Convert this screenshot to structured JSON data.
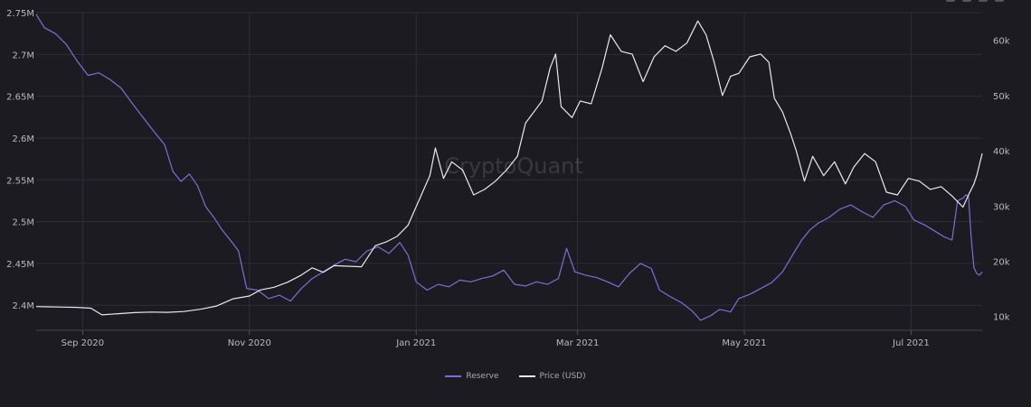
{
  "watermark": "CryptoQuant",
  "legend": [
    {
      "label": "Reserve",
      "color": "#7c6fd4"
    },
    {
      "label": "Price (USD)",
      "color": "#e8e8ee"
    }
  ],
  "colors": {
    "background": "#1c1b22",
    "grid": "#2e2d37",
    "reserve": "#7c6fd4",
    "price": "#e8e8ee"
  },
  "chart_data": {
    "type": "line",
    "title": "",
    "grid": true,
    "legend_position": "bottom-center",
    "x_range": [
      "2020-08-15",
      "2021-07-27"
    ],
    "x_ticks": [
      {
        "label": "Sep 2020",
        "date": "2020-09-01"
      },
      {
        "label": "Nov 2020",
        "date": "2020-11-01"
      },
      {
        "label": "Jan 2021",
        "date": "2021-01-01"
      },
      {
        "label": "Mar 2021",
        "date": "2021-03-01"
      },
      {
        "label": "May 2021",
        "date": "2021-05-01"
      },
      {
        "label": "Jul 2021",
        "date": "2021-07-01"
      }
    ],
    "y_left": {
      "range": [
        2370000,
        2750000
      ],
      "ticks": [
        {
          "label": "2.75M",
          "value": 2750000
        },
        {
          "label": "2.7M",
          "value": 2700000
        },
        {
          "label": "2.65M",
          "value": 2650000
        },
        {
          "label": "2.6M",
          "value": 2600000
        },
        {
          "label": "2.55M",
          "value": 2550000
        },
        {
          "label": "2.5M",
          "value": 2500000
        },
        {
          "label": "2.45M",
          "value": 2450000
        },
        {
          "label": "2.4M",
          "value": 2400000
        }
      ]
    },
    "y_right": {
      "range": [
        7500,
        65000
      ],
      "ticks": [
        {
          "label": "60k",
          "value": 60000
        },
        {
          "label": "50k",
          "value": 50000
        },
        {
          "label": "40k",
          "value": 40000
        },
        {
          "label": "30k",
          "value": 30000
        },
        {
          "label": "20k",
          "value": 20000
        },
        {
          "label": "10k",
          "value": 10000
        }
      ]
    },
    "series": [
      {
        "name": "Reserve",
        "axis": "left",
        "points": [
          [
            "2020-08-15",
            2748000
          ],
          [
            "2020-08-18",
            2732000
          ],
          [
            "2020-08-22",
            2725000
          ],
          [
            "2020-08-26",
            2712000
          ],
          [
            "2020-08-30",
            2692000
          ],
          [
            "2020-09-03",
            2675000
          ],
          [
            "2020-09-07",
            2678000
          ],
          [
            "2020-09-11",
            2670000
          ],
          [
            "2020-09-15",
            2660000
          ],
          [
            "2020-09-19",
            2642000
          ],
          [
            "2020-09-23",
            2625000
          ],
          [
            "2020-09-27",
            2608000
          ],
          [
            "2020-10-01",
            2592000
          ],
          [
            "2020-10-04",
            2560000
          ],
          [
            "2020-10-07",
            2548000
          ],
          [
            "2020-10-10",
            2557000
          ],
          [
            "2020-10-13",
            2543000
          ],
          [
            "2020-10-16",
            2518000
          ],
          [
            "2020-10-19",
            2505000
          ],
          [
            "2020-10-22",
            2490000
          ],
          [
            "2020-10-25",
            2478000
          ],
          [
            "2020-10-28",
            2465000
          ],
          [
            "2020-10-31",
            2420000
          ],
          [
            "2020-11-04",
            2418000
          ],
          [
            "2020-11-08",
            2408000
          ],
          [
            "2020-11-12",
            2412000
          ],
          [
            "2020-11-16",
            2405000
          ],
          [
            "2020-11-20",
            2420000
          ],
          [
            "2020-11-24",
            2432000
          ],
          [
            "2020-11-28",
            2440000
          ],
          [
            "2020-12-02",
            2448000
          ],
          [
            "2020-12-06",
            2455000
          ],
          [
            "2020-12-10",
            2452000
          ],
          [
            "2020-12-14",
            2465000
          ],
          [
            "2020-12-18",
            2470000
          ],
          [
            "2020-12-22",
            2462000
          ],
          [
            "2020-12-26",
            2475000
          ],
          [
            "2020-12-29",
            2460000
          ],
          [
            "2021-01-01",
            2428000
          ],
          [
            "2021-01-05",
            2418000
          ],
          [
            "2021-01-09",
            2425000
          ],
          [
            "2021-01-13",
            2422000
          ],
          [
            "2021-01-17",
            2430000
          ],
          [
            "2021-01-21",
            2428000
          ],
          [
            "2021-01-25",
            2432000
          ],
          [
            "2021-01-29",
            2435000
          ],
          [
            "2021-02-02",
            2442000
          ],
          [
            "2021-02-06",
            2425000
          ],
          [
            "2021-02-10",
            2423000
          ],
          [
            "2021-02-14",
            2428000
          ],
          [
            "2021-02-18",
            2425000
          ],
          [
            "2021-02-22",
            2432000
          ],
          [
            "2021-02-25",
            2468000
          ],
          [
            "2021-02-28",
            2440000
          ],
          [
            "2021-03-04",
            2436000
          ],
          [
            "2021-03-08",
            2433000
          ],
          [
            "2021-03-12",
            2428000
          ],
          [
            "2021-03-16",
            2422000
          ],
          [
            "2021-03-20",
            2438000
          ],
          [
            "2021-03-24",
            2450000
          ],
          [
            "2021-03-28",
            2444000
          ],
          [
            "2021-03-31",
            2418000
          ],
          [
            "2021-04-04",
            2410000
          ],
          [
            "2021-04-08",
            2403000
          ],
          [
            "2021-04-12",
            2393000
          ],
          [
            "2021-04-15",
            2382000
          ],
          [
            "2021-04-19",
            2388000
          ],
          [
            "2021-04-22",
            2395000
          ],
          [
            "2021-04-26",
            2392000
          ],
          [
            "2021-04-29",
            2408000
          ],
          [
            "2021-05-03",
            2413000
          ],
          [
            "2021-05-07",
            2420000
          ],
          [
            "2021-05-11",
            2427000
          ],
          [
            "2021-05-15",
            2440000
          ],
          [
            "2021-05-19",
            2462000
          ],
          [
            "2021-05-22",
            2478000
          ],
          [
            "2021-05-25",
            2490000
          ],
          [
            "2021-05-28",
            2498000
          ],
          [
            "2021-06-01",
            2505000
          ],
          [
            "2021-06-05",
            2515000
          ],
          [
            "2021-06-09",
            2520000
          ],
          [
            "2021-06-13",
            2512000
          ],
          [
            "2021-06-17",
            2505000
          ],
          [
            "2021-06-21",
            2520000
          ],
          [
            "2021-06-25",
            2525000
          ],
          [
            "2021-06-29",
            2518000
          ],
          [
            "2021-07-02",
            2502000
          ],
          [
            "2021-07-06",
            2496000
          ],
          [
            "2021-07-09",
            2490000
          ],
          [
            "2021-07-13",
            2482000
          ],
          [
            "2021-07-16",
            2478000
          ],
          [
            "2021-07-18",
            2525000
          ],
          [
            "2021-07-20",
            2528000
          ],
          [
            "2021-07-21",
            2532000
          ],
          [
            "2021-07-22",
            2530000
          ],
          [
            "2021-07-23",
            2480000
          ],
          [
            "2021-07-24",
            2445000
          ],
          [
            "2021-07-25",
            2438000
          ],
          [
            "2021-07-26",
            2436000
          ],
          [
            "2021-07-27",
            2440000
          ]
        ]
      },
      {
        "name": "Price (USD)",
        "axis": "right",
        "points": [
          [
            "2020-08-15",
            11800
          ],
          [
            "2020-08-20",
            11750
          ],
          [
            "2020-08-25",
            11700
          ],
          [
            "2020-08-30",
            11650
          ],
          [
            "2020-09-04",
            11500
          ],
          [
            "2020-09-08",
            10300
          ],
          [
            "2020-09-14",
            10500
          ],
          [
            "2020-09-20",
            10700
          ],
          [
            "2020-09-26",
            10800
          ],
          [
            "2020-10-02",
            10750
          ],
          [
            "2020-10-08",
            10900
          ],
          [
            "2020-10-14",
            11300
          ],
          [
            "2020-10-20",
            11900
          ],
          [
            "2020-10-26",
            13200
          ],
          [
            "2020-11-01",
            13700
          ],
          [
            "2020-11-05",
            14800
          ],
          [
            "2020-11-10",
            15300
          ],
          [
            "2020-11-15",
            16200
          ],
          [
            "2020-11-20",
            17500
          ],
          [
            "2020-11-24",
            18800
          ],
          [
            "2020-11-28",
            18000
          ],
          [
            "2020-12-02",
            19200
          ],
          [
            "2020-12-07",
            19100
          ],
          [
            "2020-12-12",
            19000
          ],
          [
            "2020-12-17",
            22800
          ],
          [
            "2020-12-21",
            23500
          ],
          [
            "2020-12-25",
            24500
          ],
          [
            "2020-12-29",
            26500
          ],
          [
            "2021-01-02",
            31000
          ],
          [
            "2021-01-06",
            35500
          ],
          [
            "2021-01-08",
            40500
          ],
          [
            "2021-01-11",
            35000
          ],
          [
            "2021-01-14",
            38000
          ],
          [
            "2021-01-18",
            36500
          ],
          [
            "2021-01-22",
            32000
          ],
          [
            "2021-01-26",
            33000
          ],
          [
            "2021-01-30",
            34500
          ],
          [
            "2021-02-03",
            36500
          ],
          [
            "2021-02-07",
            39000
          ],
          [
            "2021-02-10",
            45000
          ],
          [
            "2021-02-13",
            47000
          ],
          [
            "2021-02-16",
            49000
          ],
          [
            "2021-02-19",
            55000
          ],
          [
            "2021-02-21",
            57500
          ],
          [
            "2021-02-23",
            48000
          ],
          [
            "2021-02-27",
            46000
          ],
          [
            "2021-03-02",
            49000
          ],
          [
            "2021-03-06",
            48500
          ],
          [
            "2021-03-10",
            55000
          ],
          [
            "2021-03-13",
            61000
          ],
          [
            "2021-03-17",
            58000
          ],
          [
            "2021-03-21",
            57500
          ],
          [
            "2021-03-25",
            52500
          ],
          [
            "2021-03-29",
            57000
          ],
          [
            "2021-04-02",
            59000
          ],
          [
            "2021-04-06",
            58000
          ],
          [
            "2021-04-10",
            59500
          ],
          [
            "2021-04-14",
            63500
          ],
          [
            "2021-04-17",
            61000
          ],
          [
            "2021-04-20",
            56000
          ],
          [
            "2021-04-23",
            50000
          ],
          [
            "2021-04-26",
            53500
          ],
          [
            "2021-04-29",
            54000
          ],
          [
            "2021-05-03",
            57000
          ],
          [
            "2021-05-07",
            57500
          ],
          [
            "2021-05-10",
            56000
          ],
          [
            "2021-05-12",
            49500
          ],
          [
            "2021-05-15",
            47000
          ],
          [
            "2021-05-18",
            43000
          ],
          [
            "2021-05-20",
            40000
          ],
          [
            "2021-05-23",
            34500
          ],
          [
            "2021-05-26",
            39000
          ],
          [
            "2021-05-30",
            35500
          ],
          [
            "2021-06-03",
            38000
          ],
          [
            "2021-06-07",
            34000
          ],
          [
            "2021-06-10",
            37000
          ],
          [
            "2021-06-14",
            39500
          ],
          [
            "2021-06-18",
            38000
          ],
          [
            "2021-06-22",
            32500
          ],
          [
            "2021-06-26",
            32000
          ],
          [
            "2021-06-30",
            35000
          ],
          [
            "2021-07-04",
            34500
          ],
          [
            "2021-07-08",
            33000
          ],
          [
            "2021-07-12",
            33500
          ],
          [
            "2021-07-16",
            31800
          ],
          [
            "2021-07-20",
            29800
          ],
          [
            "2021-07-22",
            32000
          ],
          [
            "2021-07-24",
            34000
          ],
          [
            "2021-07-25",
            35500
          ],
          [
            "2021-07-26",
            37500
          ],
          [
            "2021-07-27",
            39500
          ]
        ]
      }
    ]
  }
}
